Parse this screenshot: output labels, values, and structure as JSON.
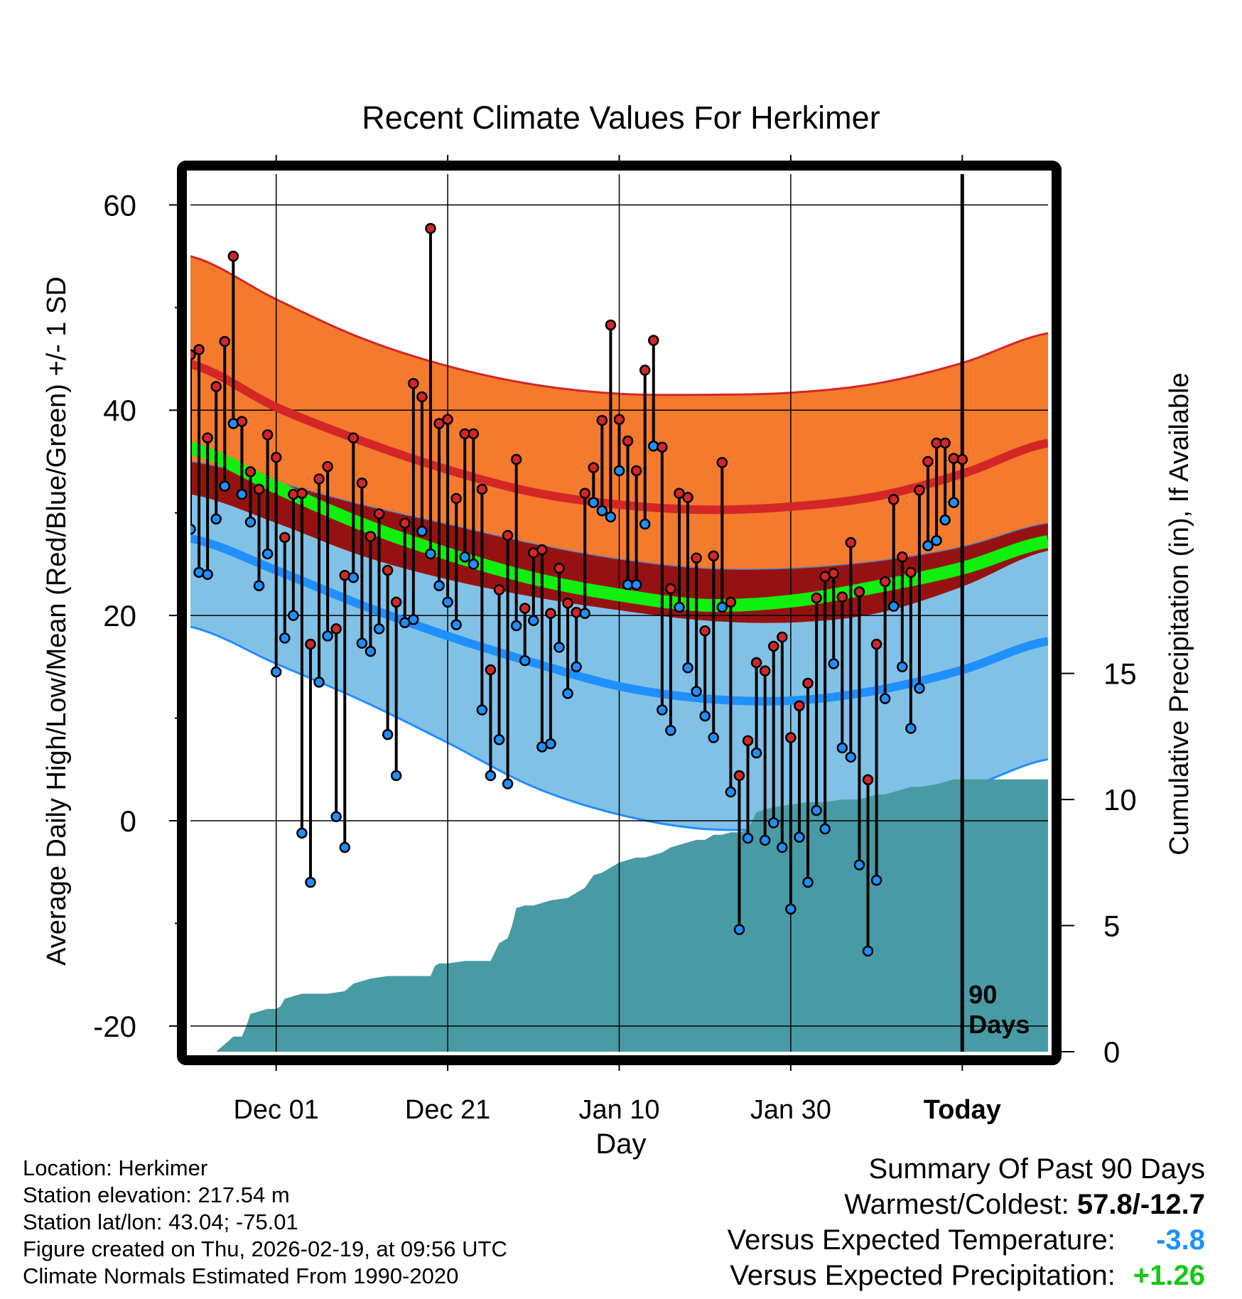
{
  "chart_data": {
    "type": "line",
    "title": "Recent Climate Values For Herkimer",
    "xlabel": "Day",
    "ylabel": "Average Daily High/Low/Mean (Red/Blue/Green) +/- 1 SD",
    "y2label": "Cumulative Precipitation (in), If Available",
    "ylim": [
      -22.5,
      63
    ],
    "y2lim": [
      0,
      34.8
    ],
    "xlim": [
      0,
      100
    ],
    "yticks": [
      {
        "v": 60,
        "label": "60"
      },
      {
        "v": 40,
        "label": "40"
      },
      {
        "v": 20,
        "label": "20"
      },
      {
        "v": 0,
        "label": "0"
      },
      {
        "v": -20,
        "label": "-20"
      }
    ],
    "y2ticks": [
      {
        "v": 0,
        "label": "0"
      },
      {
        "v": 5,
        "label": "5"
      },
      {
        "v": 10,
        "label": "10"
      },
      {
        "v": 15,
        "label": "15"
      }
    ],
    "xticks": [
      {
        "v": 10,
        "label": "Dec 01"
      },
      {
        "v": 30,
        "label": "Dec 21"
      },
      {
        "v": 50,
        "label": "Jan 10"
      },
      {
        "v": 70,
        "label": "Jan 30"
      },
      {
        "v": 90,
        "label": "Today"
      }
    ],
    "today_index": 90,
    "today_annotation": [
      "90",
      "Days"
    ],
    "colors": {
      "high_band": "#f47a2e",
      "high_line": "#d42626",
      "mean_band": "#961212",
      "mean_line": "#0ff00f",
      "low_band": "#82c1e6",
      "low_line": "#1e90ff",
      "precip": "#489ba4",
      "high_dot": "#d42626",
      "low_dot": "#1e90ff"
    },
    "normals": {
      "x": [
        0,
        10,
        20,
        30,
        40,
        50,
        60,
        70,
        80,
        90,
        100
      ],
      "high_mean": [
        44.5,
        40.3,
        37.0,
        34.2,
        32.0,
        30.8,
        30.3,
        30.6,
        31.6,
        33.8,
        36.8
      ],
      "high_upper": [
        55.0,
        50.8,
        47.0,
        44.3,
        42.5,
        41.6,
        41.5,
        41.7,
        42.6,
        44.6,
        47.5
      ],
      "mean_line": [
        36.3,
        32.5,
        28.9,
        26.0,
        23.6,
        22.0,
        21.0,
        21.4,
        22.8,
        24.6,
        27.2
      ],
      "mean_upper": [
        35.0,
        33.0,
        30.8,
        28.9,
        27.0,
        25.5,
        24.6,
        24.6,
        25.3,
        26.7,
        29.0
      ],
      "mean_lower": [
        31.8,
        29.0,
        25.8,
        23.5,
        21.8,
        20.5,
        19.5,
        19.3,
        20.2,
        22.8,
        26.3
      ],
      "low_mean": [
        27.5,
        24.4,
        21.0,
        18.0,
        15.4,
        13.1,
        11.9,
        11.7,
        12.7,
        14.7,
        17.5
      ],
      "low_lower": [
        18.9,
        15.3,
        11.7,
        7.6,
        3.3,
        0.6,
        -0.8,
        -0.6,
        0.9,
        3.0,
        6.0
      ]
    },
    "daily": {
      "x": [
        0,
        1,
        2,
        3,
        4,
        5,
        6,
        7,
        8,
        9,
        10,
        11,
        12,
        13,
        14,
        15,
        16,
        17,
        18,
        19,
        20,
        21,
        22,
        23,
        24,
        25,
        26,
        27,
        28,
        29,
        30,
        31,
        32,
        33,
        34,
        35,
        36,
        37,
        38,
        39,
        40,
        41,
        42,
        43,
        44,
        45,
        46,
        47,
        48,
        49,
        50,
        51,
        52,
        53,
        54,
        55,
        56,
        57,
        58,
        59,
        60,
        61,
        62,
        63,
        64,
        65,
        66,
        67,
        68,
        69,
        70,
        71,
        72,
        73,
        74,
        75,
        76,
        77,
        78,
        79,
        80,
        81,
        82,
        83,
        84,
        85,
        86,
        87,
        88,
        89,
        90
      ],
      "high": [
        45.4,
        45.9,
        37.3,
        42.3,
        46.7,
        55.0,
        38.9,
        34.0,
        32.3,
        37.6,
        35.4,
        27.6,
        31.8,
        31.9,
        17.2,
        33.3,
        34.5,
        18.7,
        23.9,
        37.3,
        32.9,
        27.7,
        29.9,
        24.4,
        21.3,
        29.0,
        42.6,
        41.3,
        57.7,
        38.7,
        39.1,
        31.4,
        37.7,
        37.7,
        32.3,
        14.7,
        22.5,
        27.8,
        35.2,
        20.7,
        26.1,
        26.4,
        20.2,
        24.6,
        21.2,
        20.3,
        31.9,
        34.4,
        39.0,
        48.3,
        39.1,
        37.0,
        34.1,
        43.9,
        46.8,
        36.4,
        22.6,
        31.9,
        31.5,
        25.6,
        18.5,
        25.8,
        34.9,
        21.3,
        4.4,
        7.8,
        15.4,
        14.6,
        17.0,
        17.9,
        8.1,
        11.2,
        13.4,
        21.7,
        23.8,
        24.1,
        21.8,
        27.1,
        22.3,
        4.0,
        17.2,
        23.3,
        31.3,
        25.7,
        24.2,
        32.2,
        35.0,
        36.8,
        36.8,
        35.3,
        35.2
      ],
      "low": [
        28.4,
        24.2,
        24.0,
        29.4,
        32.6,
        38.7,
        31.8,
        29.1,
        22.9,
        26.0,
        14.5,
        17.8,
        20.0,
        -1.2,
        -6.0,
        13.5,
        18.0,
        0.4,
        -2.6,
        23.7,
        17.3,
        16.5,
        18.7,
        8.4,
        4.4,
        19.3,
        19.6,
        28.2,
        26.0,
        22.9,
        21.3,
        19.1,
        25.7,
        25.0,
        10.8,
        4.4,
        7.9,
        3.6,
        19.0,
        15.6,
        19.5,
        7.2,
        7.5,
        16.9,
        12.4,
        15.0,
        20.2,
        31.0,
        30.2,
        29.6,
        34.1,
        23.0,
        23.0,
        28.9,
        36.5,
        10.8,
        8.8,
        20.8,
        14.9,
        12.6,
        10.2,
        8.1,
        20.8,
        2.8,
        -10.6,
        -1.7,
        6.6,
        -1.9,
        -0.2,
        -2.6,
        -8.6,
        -1.6,
        -6.0,
        1.0,
        -0.8,
        15.3,
        7.1,
        6.2,
        -4.3,
        -12.7,
        -5.8,
        11.9,
        20.9,
        15.0,
        9.0,
        12.9,
        26.8,
        27.3,
        29.3,
        31.0,
        null
      ]
    },
    "precip_cumulative": {
      "x": [
        3,
        4,
        5,
        6,
        6.5,
        7,
        8,
        9,
        10,
        10.5,
        11,
        12,
        13,
        15,
        16,
        18,
        19,
        20,
        21,
        23,
        25,
        27,
        28,
        28.5,
        29,
        30,
        32,
        33,
        35,
        36,
        37,
        37.5,
        38,
        39,
        40,
        42,
        44,
        45,
        46,
        47,
        48,
        49,
        50,
        51,
        52,
        53,
        54,
        55,
        56,
        57,
        58,
        59,
        60,
        61,
        62,
        63,
        64,
        65,
        66,
        67,
        68,
        70,
        72,
        74,
        76,
        78,
        79,
        80,
        81,
        82,
        83,
        84,
        85,
        87,
        88,
        89,
        90,
        100
      ],
      "y": [
        0,
        0.3,
        0.6,
        0.6,
        1.0,
        1.5,
        1.6,
        1.7,
        1.7,
        1.8,
        2.1,
        2.2,
        2.3,
        2.3,
        2.3,
        2.4,
        2.7,
        2.8,
        2.9,
        3.0,
        3.0,
        3.0,
        3.0,
        3.4,
        3.5,
        3.5,
        3.6,
        3.6,
        3.6,
        4.3,
        4.5,
        5.0,
        5.7,
        5.8,
        5.8,
        6.0,
        6.1,
        6.3,
        6.5,
        7.0,
        7.1,
        7.3,
        7.5,
        7.6,
        7.7,
        7.7,
        7.8,
        7.9,
        8.1,
        8.2,
        8.3,
        8.4,
        8.4,
        8.6,
        8.6,
        8.7,
        8.7,
        8.8,
        9.5,
        9.6,
        9.7,
        9.8,
        9.9,
        9.9,
        10.0,
        10.0,
        10.1,
        10.2,
        10.2,
        10.3,
        10.4,
        10.5,
        10.5,
        10.6,
        10.7,
        10.8,
        10.8,
        10.8
      ]
    }
  },
  "info": {
    "location": "Location: Herkimer",
    "elevation": "Station elevation: 217.54 m",
    "latlon": "Station lat/lon: 43.04; -75.01",
    "created": "Figure created on Thu, 2026-02-19, at 09:56 UTC",
    "normals": "Climate Normals Estimated From 1990-2020"
  },
  "summary": {
    "title": "Summary Of Past 90 Days",
    "warmest_label": "Warmest/Coldest:",
    "warmest_value": "57.8/-12.7",
    "temp_label": "Versus Expected Temperature:",
    "temp_value": "-3.8",
    "temp_color": "#1e90ff",
    "precip_label": "Versus Expected Precipitation:",
    "precip_value": "+1.26",
    "precip_color": "#13c913"
  }
}
